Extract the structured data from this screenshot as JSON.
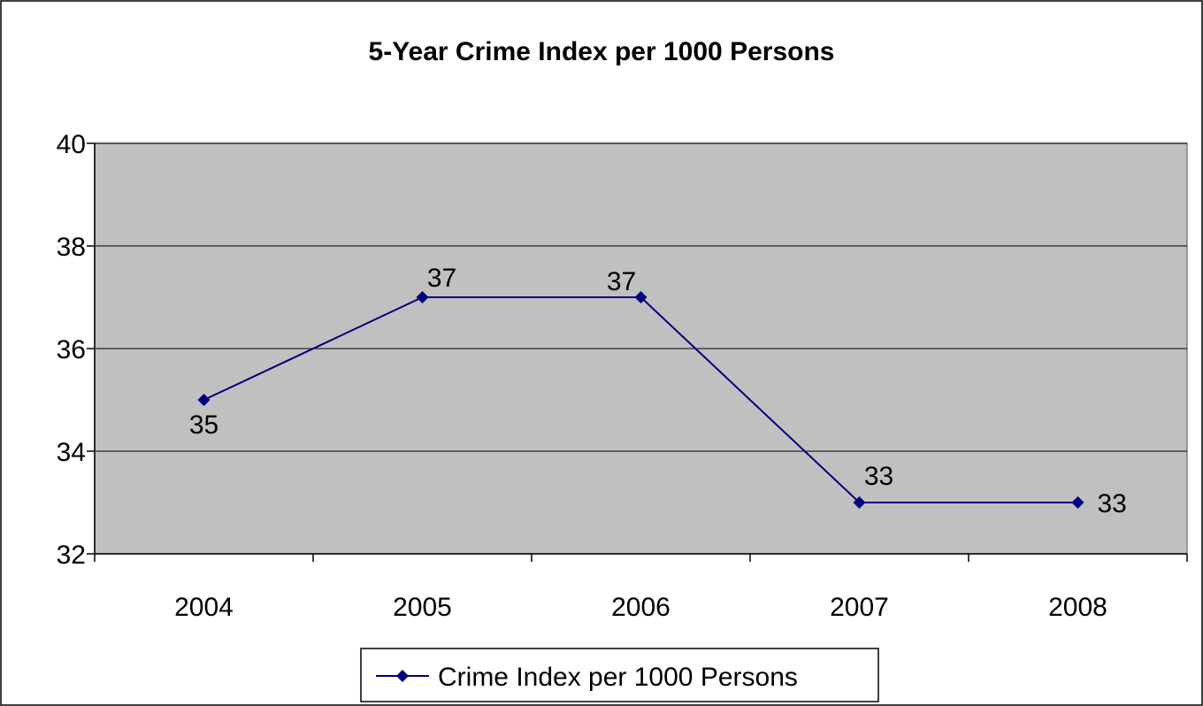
{
  "chart_data": {
    "type": "line",
    "title": "5-Year Crime Index per 1000 Persons",
    "xlabel": "",
    "ylabel": "",
    "categories": [
      "2004",
      "2005",
      "2006",
      "2007",
      "2008"
    ],
    "series": [
      {
        "name": "Crime Index per 1000 Persons",
        "values": [
          35,
          37,
          37,
          33,
          33
        ],
        "data_labels": [
          "35",
          "37",
          "37",
          "33",
          "33"
        ]
      }
    ],
    "ylim": [
      32,
      40
    ],
    "yticks": [
      "32",
      "34",
      "36",
      "38",
      "40"
    ],
    "grid": true,
    "legend": "bottom",
    "colors": {
      "series_line": "#000080",
      "plot_area": "#c0c0c0",
      "gridline": "#000000"
    }
  }
}
